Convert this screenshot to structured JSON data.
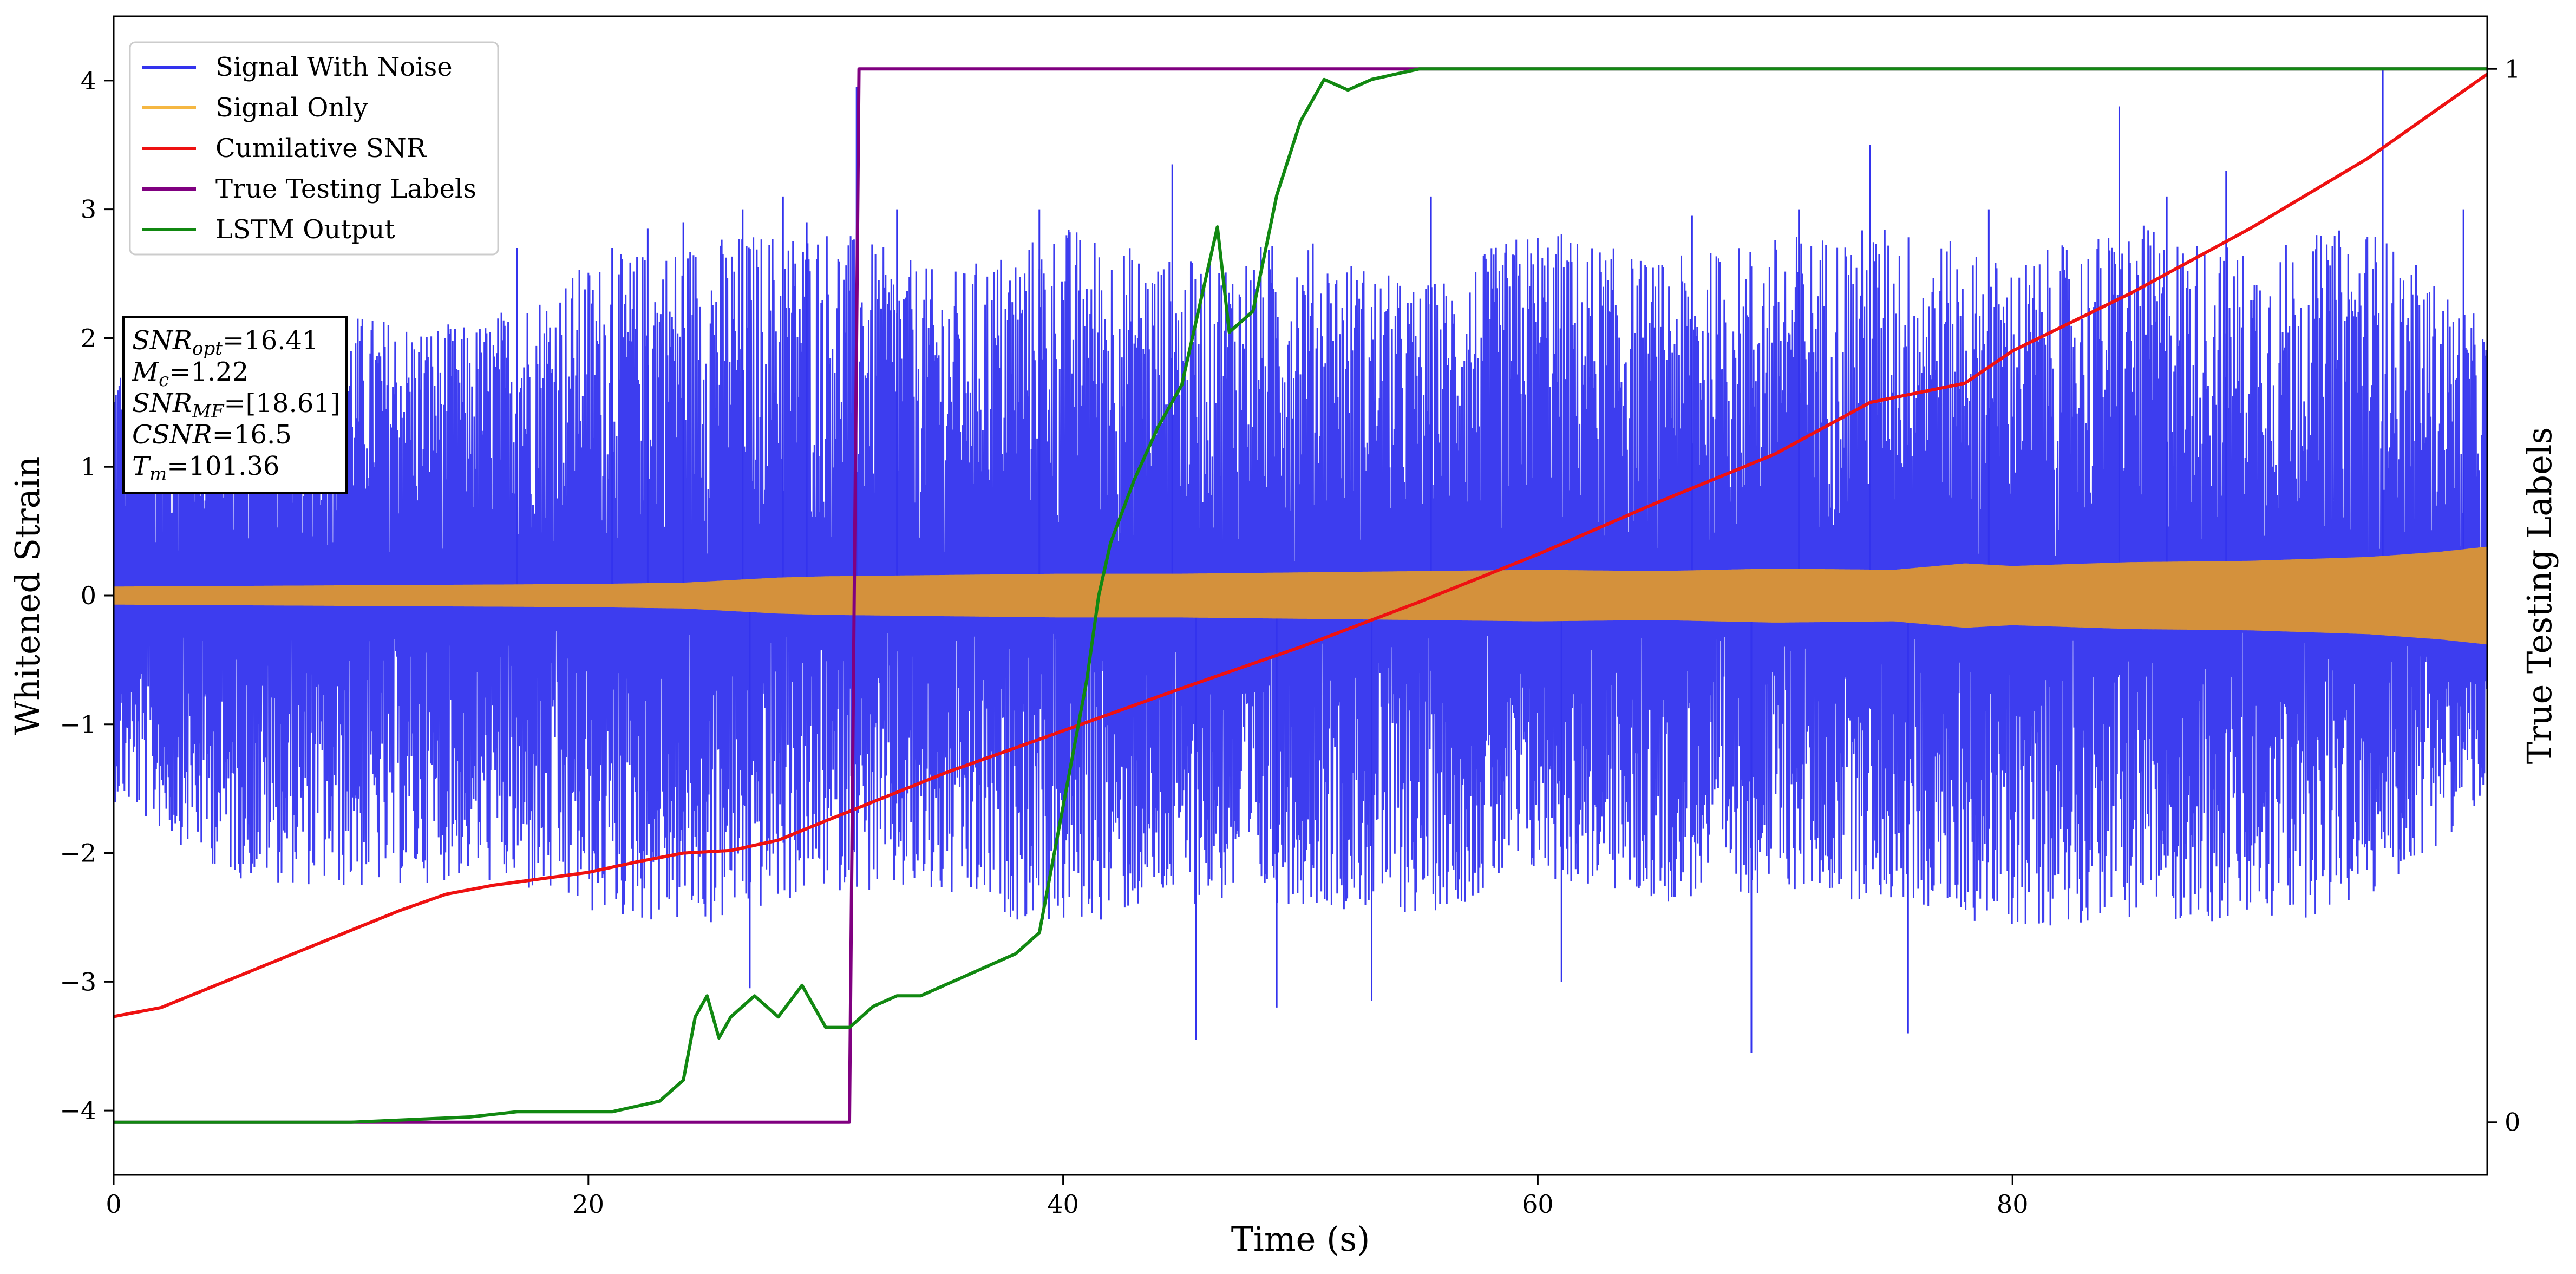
{
  "chart_data": {
    "type": "line",
    "xlabel": "Time (s)",
    "ylabel": "Whitened Strain",
    "y2label": "True Testing Labels",
    "xlim": [
      0,
      100
    ],
    "ylim": [
      -4.5,
      4.5
    ],
    "y2lim": [
      -0.05,
      1.05
    ],
    "x_ticks": [
      0,
      20,
      40,
      60,
      80
    ],
    "y_ticks": [
      -4,
      -3,
      -2,
      -1,
      0,
      1,
      2,
      3,
      4
    ],
    "y2_ticks": [
      0,
      1
    ],
    "legend_position": "top-left",
    "series": [
      {
        "name": "Signal With Noise",
        "color": "#3333ee",
        "axis": "left",
        "envelope": {
          "x": [
            0,
            5,
            10,
            15,
            20,
            25,
            30,
            35,
            40,
            45,
            50,
            55,
            60,
            65,
            70,
            75,
            80,
            85,
            90,
            95,
            100
          ],
          "upper": [
            1.9,
            2.0,
            2.2,
            2.1,
            2.6,
            2.8,
            2.9,
            2.5,
            2.9,
            2.6,
            2.8,
            2.4,
            2.9,
            2.6,
            2.8,
            2.9,
            2.6,
            2.9,
            2.7,
            2.9,
            2.1
          ],
          "lower": [
            -1.6,
            -2.2,
            -2.3,
            -2.2,
            -2.5,
            -2.6,
            -2.3,
            -2.4,
            -2.6,
            -2.4,
            -2.4,
            -2.5,
            -2.2,
            -2.4,
            -2.3,
            -2.4,
            -2.6,
            -2.5,
            -2.6,
            -2.4,
            -1.6
          ]
        },
        "spikes": [
          {
            "x": 17.0,
            "y": 2.7
          },
          {
            "x": 21.0,
            "y": 2.7
          },
          {
            "x": 22.5,
            "y": 2.85
          },
          {
            "x": 24.0,
            "y": 2.9
          },
          {
            "x": 26.5,
            "y": 3.0
          },
          {
            "x": 26.8,
            "y": -3.05
          },
          {
            "x": 28.2,
            "y": 3.1
          },
          {
            "x": 29.2,
            "y": 2.9
          },
          {
            "x": 31.3,
            "y": 3.95
          },
          {
            "x": 33.0,
            "y": 3.0
          },
          {
            "x": 39.0,
            "y": 3.0
          },
          {
            "x": 44.6,
            "y": 3.35
          },
          {
            "x": 45.6,
            "y": -3.45
          },
          {
            "x": 49.0,
            "y": -3.2
          },
          {
            "x": 53.0,
            "y": -3.15
          },
          {
            "x": 55.5,
            "y": 3.1
          },
          {
            "x": 61.0,
            "y": -3.0
          },
          {
            "x": 66.5,
            "y": 2.95
          },
          {
            "x": 69.0,
            "y": -3.55
          },
          {
            "x": 71.0,
            "y": 3.0
          },
          {
            "x": 74.0,
            "y": 3.5
          },
          {
            "x": 75.6,
            "y": -3.4
          },
          {
            "x": 79.0,
            "y": 3.0
          },
          {
            "x": 84.5,
            "y": 3.8
          },
          {
            "x": 86.5,
            "y": 3.1
          },
          {
            "x": 89.0,
            "y": 3.3
          },
          {
            "x": 95.6,
            "y": 4.1
          },
          {
            "x": 99.0,
            "y": 3.0
          }
        ]
      },
      {
        "name": "Signal Only",
        "color": "#d4913c",
        "legend_color": "#f5b742",
        "axis": "left",
        "amplitude": {
          "x": [
            0,
            10,
            20,
            24,
            28,
            30,
            35,
            40,
            45,
            50,
            55,
            60,
            65,
            70,
            75,
            78,
            80,
            85,
            90,
            95,
            98,
            100
          ],
          "y": [
            0.07,
            0.08,
            0.09,
            0.1,
            0.14,
            0.15,
            0.16,
            0.17,
            0.17,
            0.18,
            0.19,
            0.2,
            0.19,
            0.21,
            0.2,
            0.25,
            0.23,
            0.26,
            0.27,
            0.3,
            0.34,
            0.38
          ]
        }
      },
      {
        "name": "Cumilative SNR",
        "color": "#ee1111",
        "axis": "left",
        "x": [
          0,
          2,
          4,
          6,
          8,
          10,
          12,
          14,
          16,
          18,
          20,
          22,
          24,
          26,
          28,
          30,
          35,
          40,
          45,
          50,
          55,
          60,
          65,
          70,
          74,
          78,
          80,
          85,
          90,
          95,
          100
        ],
        "y": [
          -3.27,
          -3.2,
          -3.05,
          -2.9,
          -2.75,
          -2.6,
          -2.45,
          -2.32,
          -2.25,
          -2.2,
          -2.15,
          -2.07,
          -2.0,
          -1.98,
          -1.9,
          -1.75,
          -1.38,
          -1.05,
          -0.72,
          -0.4,
          -0.05,
          0.32,
          0.72,
          1.1,
          1.5,
          1.65,
          1.9,
          2.35,
          2.85,
          3.4,
          4.05
        ]
      },
      {
        "name": "True Testing Labels",
        "color": "#800080",
        "axis": "right",
        "x": [
          0,
          31.0,
          31.4,
          100
        ],
        "y": [
          0,
          0,
          1,
          1
        ]
      },
      {
        "name": "LSTM Output",
        "color": "#118811",
        "axis": "right",
        "x": [
          0,
          10,
          15,
          17,
          18,
          20,
          21,
          22,
          23,
          24,
          24.5,
          25,
          25.5,
          26,
          27,
          28,
          29,
          30,
          31,
          32,
          33,
          34,
          35,
          36,
          37,
          38,
          39,
          40,
          41,
          41.5,
          42,
          43,
          44,
          45,
          46,
          46.5,
          47,
          48,
          49,
          50,
          51,
          52,
          53,
          55,
          58,
          60,
          62,
          100
        ],
        "y": [
          0,
          0,
          0.005,
          0.01,
          0.01,
          0.01,
          0.01,
          0.015,
          0.02,
          0.04,
          0.1,
          0.12,
          0.08,
          0.1,
          0.12,
          0.1,
          0.13,
          0.09,
          0.09,
          0.11,
          0.12,
          0.12,
          0.13,
          0.14,
          0.15,
          0.16,
          0.18,
          0.3,
          0.42,
          0.5,
          0.55,
          0.61,
          0.66,
          0.7,
          0.8,
          0.85,
          0.75,
          0.77,
          0.88,
          0.95,
          0.99,
          0.98,
          0.99,
          1.0,
          1.0,
          1.0,
          1.0,
          1.0
        ]
      }
    ],
    "annotation": {
      "lines": [
        {
          "name": "SNR",
          "sub": "opt",
          "value": "=16.41"
        },
        {
          "name": "M",
          "sub": "c",
          "value": "=1.22"
        },
        {
          "name": "SNR",
          "sub": "MF",
          "value": "=[18.61]"
        },
        {
          "name": "CSNR",
          "sub": "",
          "value": "=16.5"
        },
        {
          "name": "T",
          "sub": "m",
          "value": "=101.36"
        }
      ]
    }
  }
}
